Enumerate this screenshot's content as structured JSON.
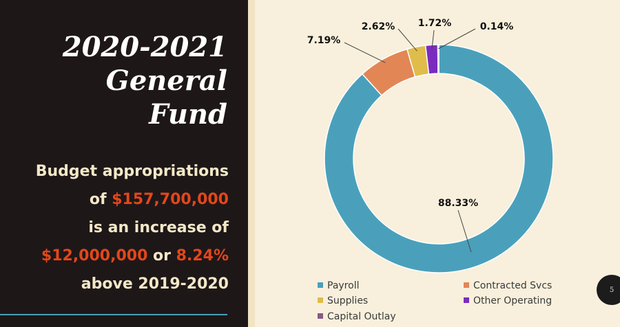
{
  "slide": {
    "title_lines": [
      "2020-2021",
      "General",
      "Fund"
    ],
    "desc": {
      "l1": "Budget appropriations",
      "l2_pre": "of ",
      "l2_amount": "$157,700,000",
      "l3": "is an increase of",
      "l4_amount": "$12,000,000",
      "l4_mid": " or ",
      "l4_pct": "8.24%",
      "l5": "above 2019-2020"
    },
    "page_number": "5"
  },
  "chart_data": {
    "type": "pie",
    "donut": true,
    "categories": [
      "Payroll",
      "Contracted Svcs",
      "Supplies",
      "Other Operating",
      "Capital Outlay"
    ],
    "values": [
      88.33,
      7.19,
      2.62,
      1.72,
      0.14
    ],
    "labels": [
      "88.33%",
      "7.19%",
      "2.62%",
      "1.72%",
      "0.14%"
    ],
    "colors": [
      "#4aa0bb",
      "#e38656",
      "#e0bc4a",
      "#7b2cbf",
      "#8a5a83"
    ],
    "legend_position": "bottom"
  }
}
